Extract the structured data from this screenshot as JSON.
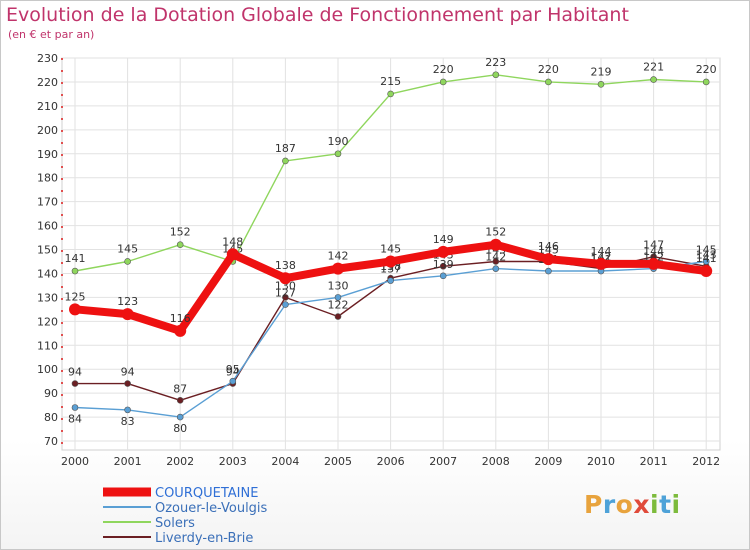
{
  "colors": {
    "title": "#c0346b",
    "axis": "#333333",
    "grid": "#e2e2e2",
    "plot_bg": "#ffffff"
  },
  "logo": {
    "letters": [
      {
        "ch": "P",
        "color": "#e8a33d"
      },
      {
        "ch": "r",
        "color": "#4ea2d8"
      },
      {
        "ch": "o",
        "color": "#e8a33d"
      },
      {
        "ch": "x",
        "color": "#e04a3a"
      },
      {
        "ch": "i",
        "color": "#7dbb3c"
      },
      {
        "ch": "t",
        "color": "#4ea2d8"
      },
      {
        "ch": "i",
        "color": "#7dbb3c"
      }
    ]
  },
  "chart_data": {
    "type": "line",
    "title": "Evolution de la Dotation Globale de Fonctionnement par Habitant",
    "subtitle": "(en € et par an)",
    "xlabel": "",
    "ylabel": "",
    "ylim": [
      70,
      230
    ],
    "yticks": [
      70,
      80,
      90,
      100,
      110,
      120,
      130,
      140,
      150,
      160,
      170,
      180,
      190,
      200,
      210,
      220,
      230
    ],
    "grid": true,
    "legend_position": "bottom-left",
    "categories": [
      "2000",
      "2001",
      "2002",
      "2003",
      "2004",
      "2005",
      "2006",
      "2007",
      "2008",
      "2009",
      "2010",
      "2011",
      "2012"
    ],
    "series": [
      {
        "name": "Liverdy-en-Brie",
        "color": "#6b1f23",
        "values": [
          94,
          94,
          87,
          94,
          130,
          122,
          138,
          143,
          145,
          145,
          142,
          147,
          143
        ],
        "labels": [
          "94",
          "94",
          "87",
          "94",
          "130",
          "122",
          "138",
          "143",
          "145",
          "145",
          "142",
          "147",
          "143"
        ]
      },
      {
        "name": "Ozouer-le-Voulgis",
        "color": "#5a9fd4",
        "values": [
          84,
          83,
          80,
          95,
          127,
          130,
          137,
          139,
          142,
          141,
          141,
          142,
          145
        ],
        "labels": [
          "84",
          "83",
          "80",
          "95",
          "127",
          "130",
          "137",
          "139",
          "142",
          "141",
          "141",
          "142",
          "145"
        ]
      },
      {
        "name": "Solers",
        "color": "#8fd65d",
        "values": [
          141,
          145,
          152,
          145,
          187,
          190,
          215,
          220,
          223,
          220,
          219,
          221,
          220
        ],
        "labels": [
          "141",
          "145",
          "152",
          "145",
          "187",
          "190",
          "215",
          "220",
          "223",
          "220",
          "219",
          "221",
          "220"
        ]
      },
      {
        "name": "COURQUETAINE",
        "color": "#ee1111",
        "values": [
          125,
          123,
          116,
          148,
          138,
          142,
          145,
          149,
          152,
          146,
          144,
          144,
          141
        ],
        "labels": [
          "125",
          "123",
          "116",
          "148",
          "138",
          "142",
          "145",
          "149",
          "152",
          "146",
          "144",
          "144",
          "141"
        ]
      }
    ],
    "legend_order": [
      "COURQUETAINE",
      "Ozouer-le-Voulgis",
      "Solers",
      "Liverdy-en-Brie"
    ]
  }
}
